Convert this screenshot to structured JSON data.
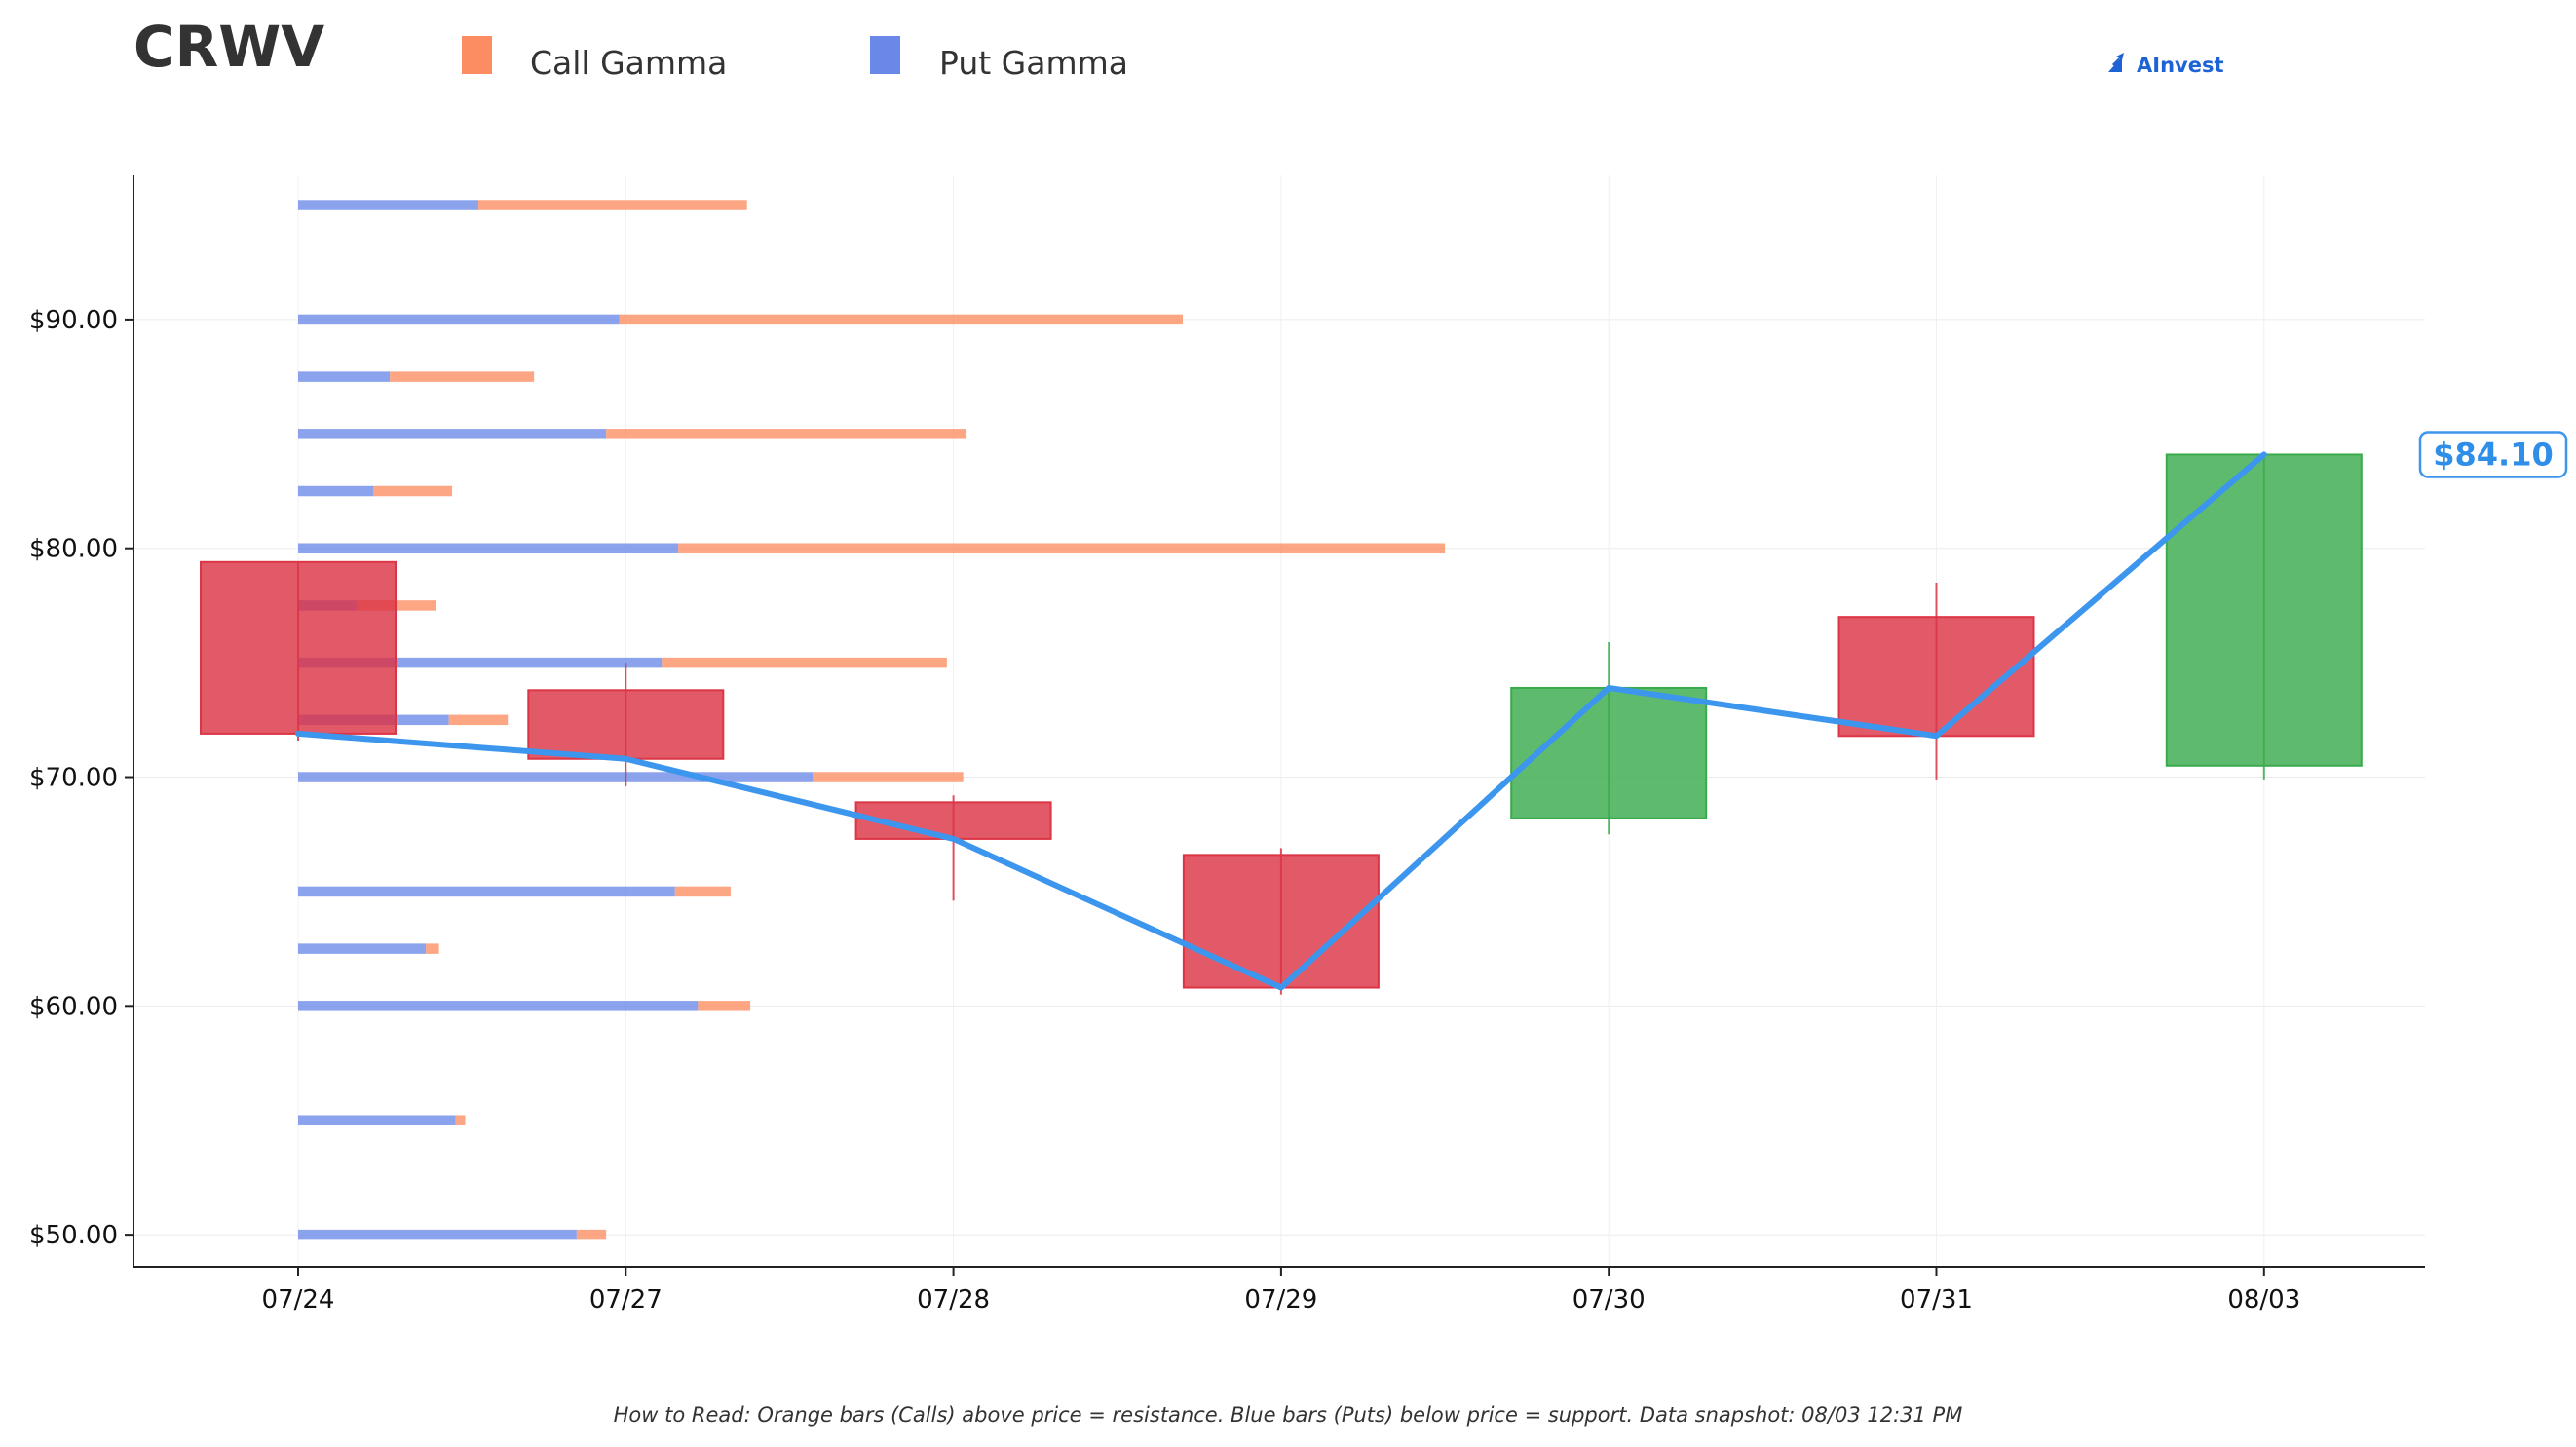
{
  "title": "CRWV",
  "brand": {
    "name": "AInvest"
  },
  "footnote": "How to Read: Orange bars (Calls) above price = resistance. Blue bars (Puts) below price = support. Data snapshot: 08/03 12:31 PM",
  "chart_data": {
    "type": "candlestick",
    "ticker": "CRWV",
    "categories": [
      "07/24",
      "07/27",
      "07/28",
      "07/29",
      "07/30",
      "07/31",
      "08/03"
    ],
    "ylim": [
      48.6,
      96.3
    ],
    "yticks": [
      50,
      60,
      70,
      80,
      90
    ],
    "ytick_labels": [
      "$50.00",
      "$60.00",
      "$70.00",
      "$80.00",
      "$90.00"
    ],
    "grid": true,
    "legend": {
      "placement": "top-left",
      "entries": [
        {
          "name": "Call Gamma",
          "color": "#fc8d62"
        },
        {
          "name": "Put Gamma",
          "color": "#6a88e8"
        }
      ]
    },
    "candles": [
      {
        "date": "07/24",
        "open": 79.4,
        "high": 79.4,
        "low": 71.6,
        "close": 71.9
      },
      {
        "date": "07/27",
        "open": 73.8,
        "high": 75.0,
        "low": 69.6,
        "close": 70.8
      },
      {
        "date": "07/28",
        "open": 68.9,
        "high": 69.2,
        "low": 64.6,
        "close": 67.3
      },
      {
        "date": "07/29",
        "open": 66.6,
        "high": 66.9,
        "low": 60.5,
        "close": 60.8
      },
      {
        "date": "07/30",
        "open": 68.2,
        "high": 75.9,
        "low": 67.5,
        "close": 73.9
      },
      {
        "date": "07/31",
        "open": 77.0,
        "high": 78.5,
        "low": 69.9,
        "close": 71.8
      },
      {
        "date": "08/03",
        "open": 70.5,
        "high": 84.2,
        "low": 69.9,
        "close": 84.1
      }
    ],
    "close_line": {
      "color": "#3d96ee",
      "values": [
        71.9,
        70.8,
        67.3,
        60.8,
        73.9,
        71.8,
        84.1
      ]
    },
    "last_price": {
      "value": 84.1,
      "label": "$84.10"
    },
    "gamma_units": "days",
    "gamma_levels": [
      {
        "strike": 95.0,
        "put": 0.55,
        "call": 0.82
      },
      {
        "strike": 90.0,
        "put": 0.98,
        "call": 1.72
      },
      {
        "strike": 87.5,
        "put": 0.28,
        "call": 0.44
      },
      {
        "strike": 85.0,
        "put": 0.94,
        "call": 1.1
      },
      {
        "strike": 82.5,
        "put": 0.23,
        "call": 0.24
      },
      {
        "strike": 80.0,
        "put": 1.16,
        "call": 2.34
      },
      {
        "strike": 77.5,
        "put": 0.18,
        "call": 0.24
      },
      {
        "strike": 75.0,
        "put": 1.11,
        "call": 0.87
      },
      {
        "strike": 72.5,
        "put": 0.46,
        "call": 0.18
      },
      {
        "strike": 70.0,
        "put": 1.57,
        "call": 0.46
      },
      {
        "strike": 65.0,
        "put": 1.15,
        "call": 0.17
      },
      {
        "strike": 62.5,
        "put": 0.39,
        "call": 0.04
      },
      {
        "strike": 60.0,
        "put": 1.22,
        "call": 0.16
      },
      {
        "strike": 55.0,
        "put": 0.48,
        "call": 0.03
      },
      {
        "strike": 50.0,
        "put": 0.85,
        "call": 0.09
      }
    ],
    "colors": {
      "up": "#3aab4d",
      "down": "#dc3545",
      "call": "#fc8d62",
      "put": "#6a88e8",
      "price_box": "#3d96ee"
    }
  }
}
